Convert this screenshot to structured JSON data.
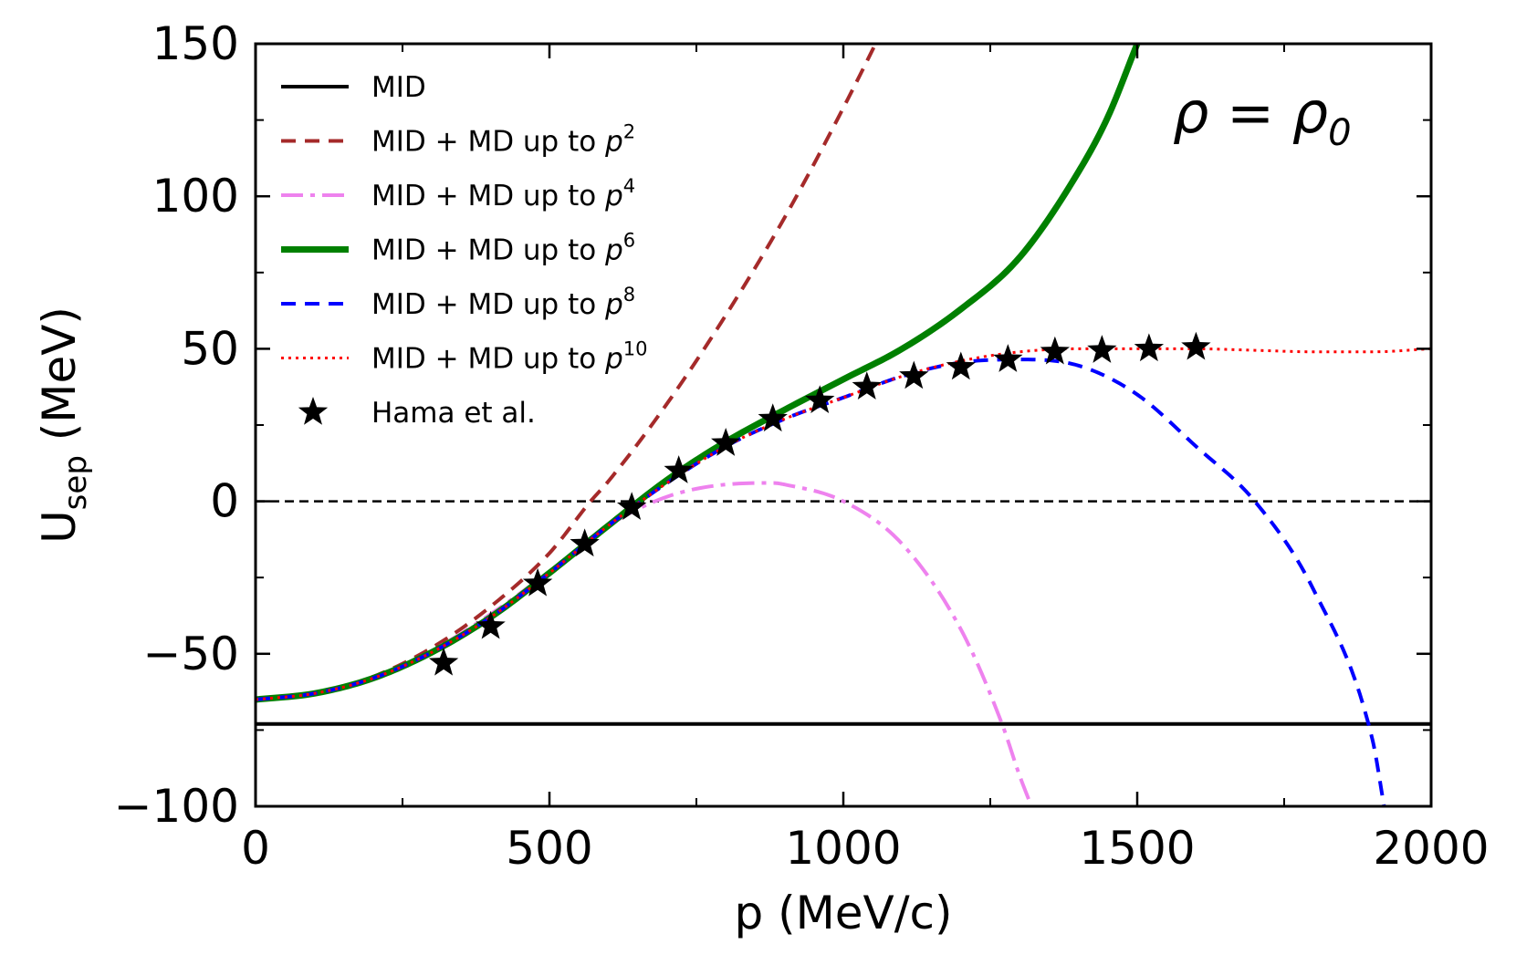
{
  "chart_data": {
    "type": "line",
    "title": "",
    "annotation": {
      "base": "ρ = ρ",
      "sub": "0"
    },
    "xlabel": "p  (MeV/c)",
    "ylabel": {
      "base": "U",
      "sub": "sep",
      "rest": "  (MeV)"
    },
    "xlim": [
      0,
      2000
    ],
    "ylim": [
      -100,
      150
    ],
    "xticks": [
      0,
      500,
      1000,
      1500,
      2000
    ],
    "yticks": [
      -100,
      -50,
      0,
      50,
      100,
      150
    ],
    "xtick_labels": [
      "0",
      "500",
      "1000",
      "1500",
      "2000"
    ],
    "ytick_labels": [
      "−100",
      "−50",
      "0",
      "50",
      "100",
      "150"
    ],
    "grid": false,
    "legend_position": "top-left",
    "zero_line": {
      "y": 0,
      "color": "#000000",
      "style": "dashed"
    },
    "series": [
      {
        "name": "MID",
        "legend_sup": "",
        "color": "#000000",
        "dash": "",
        "width": 4,
        "x": [
          0,
          2000
        ],
        "y": [
          -73,
          -73
        ]
      },
      {
        "name": "MID + MD up to p",
        "legend_sup": "2",
        "color": "#a52a2a",
        "dash": "16,10",
        "width": 4,
        "x": [
          0,
          100,
          200,
          300,
          400,
          500,
          570,
          600,
          700,
          800,
          900,
          1000,
          1100,
          1200
        ],
        "y": [
          -65,
          -63,
          -57.5,
          -48,
          -34.5,
          -17,
          0,
          6.5,
          32,
          61,
          93,
          129,
          168,
          210
        ]
      },
      {
        "name": "MID + MD up to p",
        "legend_sup": "4",
        "color": "#ee82ee",
        "dash": "24,8,5,8",
        "width": 4,
        "x": [
          0,
          100,
          200,
          300,
          400,
          500,
          600,
          700,
          800,
          880,
          900,
          1000,
          1100,
          1200,
          1270,
          1300,
          1320
        ],
        "y": [
          -65,
          -63,
          -58,
          -49,
          -37,
          -23,
          -8,
          1.5,
          5.5,
          6,
          5.5,
          0,
          -14,
          -42,
          -73,
          -90,
          -100
        ]
      },
      {
        "name": "MID + MD up to p",
        "legend_sup": "6",
        "color": "#008000",
        "dash": "",
        "width": 7,
        "x": [
          0,
          100,
          200,
          300,
          400,
          500,
          600,
          700,
          800,
          900,
          1000,
          1100,
          1200,
          1300,
          1400,
          1450,
          1500
        ],
        "y": [
          -65,
          -63,
          -58,
          -49.5,
          -38,
          -23.5,
          -8,
          7,
          19.5,
          30,
          40,
          50,
          63,
          80,
          108,
          126,
          150
        ]
      },
      {
        "name": "MID + MD up to p",
        "legend_sup": "8",
        "color": "#0000ff",
        "dash": "16,10",
        "width": 4,
        "x": [
          0,
          100,
          200,
          300,
          400,
          500,
          600,
          700,
          800,
          900,
          1000,
          1100,
          1200,
          1300,
          1400,
          1500,
          1600,
          1700,
          1800,
          1900,
          1920
        ],
        "y": [
          -65,
          -63,
          -58,
          -49.5,
          -38,
          -23.5,
          -8,
          6,
          18,
          27,
          34,
          41,
          45.5,
          46.5,
          44.5,
          35,
          18,
          0,
          -29,
          -78,
          -100
        ]
      },
      {
        "name": "MID + MD up to p",
        "legend_sup": "10",
        "color": "#ff0000",
        "dash": "3,5",
        "width": 3,
        "x": [
          0,
          100,
          200,
          300,
          400,
          500,
          600,
          700,
          800,
          900,
          1000,
          1100,
          1200,
          1300,
          1400,
          1500,
          1600,
          1700,
          1800,
          1900,
          2000
        ],
        "y": [
          -65,
          -63,
          -58,
          -49.5,
          -38,
          -23.5,
          -8,
          6,
          18,
          27,
          34,
          41,
          46,
          49,
          50,
          50,
          50,
          49.5,
          49,
          49,
          50
        ]
      },
      {
        "name": "Hama et al.",
        "legend_sup": "",
        "type": "scatter",
        "marker": "star",
        "color": "#000000",
        "x": [
          320,
          400,
          480,
          560,
          640,
          720,
          800,
          880,
          960,
          1040,
          1120,
          1200,
          1280,
          1360,
          1440,
          1520,
          1600
        ],
        "y": [
          -53,
          -41,
          -27,
          -14,
          -2,
          10,
          19,
          27,
          33,
          37.5,
          41,
          44,
          46.5,
          49,
          49.5,
          50,
          50.5
        ]
      }
    ]
  }
}
